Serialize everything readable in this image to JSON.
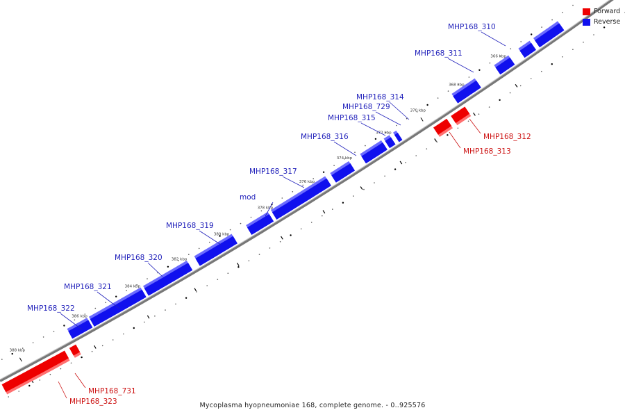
{
  "caption": "Mycoplasma hyopneumoniae 168, complete genome. - 0..925576",
  "legend": [
    {
      "label": "Forward",
      "color": "#ee0000"
    },
    {
      "label": "Reverse",
      "color": "#1010ee"
    }
  ],
  "colors": {
    "forward": "#ee0000",
    "reverse": "#1010ee",
    "backbone": "#666666"
  },
  "tick_labels": [
    "366 kbp",
    "368 kbp",
    "370 kbp",
    "372 kbp",
    "374 kbp",
    "376 kbp",
    "378 kbp",
    "380 kbp",
    "382 kbp",
    "384 kbp",
    "386 kbp",
    "388 kbp"
  ],
  "genes": [
    {
      "label": "MHP168_310",
      "strand": "reverse"
    },
    {
      "label": "MHP168_311",
      "strand": "reverse"
    },
    {
      "label": "MHP168_314",
      "strand": "reverse"
    },
    {
      "label": "MHP168_729",
      "strand": "reverse"
    },
    {
      "label": "MHP168_315",
      "strand": "reverse"
    },
    {
      "label": "MHP168_316",
      "strand": "reverse"
    },
    {
      "label": "MHP168_317",
      "strand": "reverse"
    },
    {
      "label": "mod",
      "strand": "reverse"
    },
    {
      "label": "MHP168_319",
      "strand": "reverse"
    },
    {
      "label": "MHP168_320",
      "strand": "reverse"
    },
    {
      "label": "MHP168_321",
      "strand": "reverse"
    },
    {
      "label": "MHP168_322",
      "strand": "reverse"
    },
    {
      "label": "MHP168_312",
      "strand": "forward"
    },
    {
      "label": "MHP168_313",
      "strand": "forward"
    },
    {
      "label": "MHP168_731",
      "strand": "forward"
    },
    {
      "label": "MHP168_323",
      "strand": "forward"
    }
  ]
}
